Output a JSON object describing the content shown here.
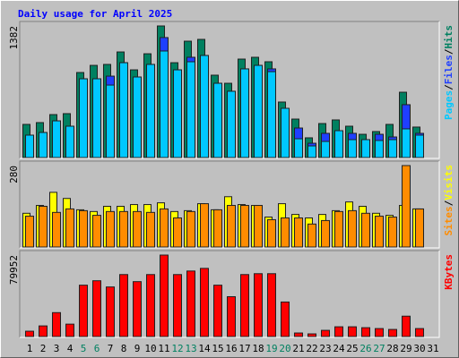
{
  "chart_data": [
    {
      "type": "bar",
      "title": "Daily usage for April 2025",
      "separator": "/",
      "ylim": [
        0,
        1382
      ],
      "yticks": [
        1382
      ],
      "series": [
        {
          "name": "Hits",
          "color": "#008060",
          "values": [
            348,
            367,
            451,
            461,
            893,
            968,
            978,
            1109,
            921,
            1090,
            1382,
            996,
            1222,
            1241,
            865,
            780,
            1034,
            1053,
            1006,
            583,
            404,
            207,
            357,
            395,
            329,
            244,
            273,
            348,
            686,
            320,
            0
          ]
        },
        {
          "name": "Files",
          "color": "#1f3fff",
          "values": [
            235,
            263,
            385,
            329,
            827,
            827,
            855,
            996,
            846,
            978,
            1260,
            921,
            1053,
            1072,
            780,
            696,
            931,
            968,
            931,
            517,
            310,
            150,
            254,
            282,
            254,
            188,
            244,
            216,
            555,
            254,
            0
          ]
        },
        {
          "name": "Pages",
          "color": "#00c8ff",
          "values": [
            235,
            263,
            385,
            329,
            827,
            827,
            761,
            996,
            846,
            978,
            1119,
            921,
            1006,
            1072,
            780,
            696,
            931,
            968,
            902,
            517,
            197,
            122,
            169,
            282,
            188,
            188,
            179,
            188,
            301,
            235,
            0
          ]
        }
      ]
    },
    {
      "type": "bar",
      "separator": "/",
      "ylim": [
        0,
        280
      ],
      "yticks": [
        280
      ],
      "series": [
        {
          "name": "Visits",
          "color": "#ffff00",
          "values": [
            116,
            143,
            188,
            167,
            128,
            122,
            140,
            140,
            146,
            146,
            152,
            122,
            125,
            149,
            128,
            173,
            146,
            143,
            103,
            149,
            112,
            100,
            112,
            125,
            155,
            140,
            116,
            109,
            143,
            131,
            0
          ]
        },
        {
          "name": "Sites",
          "color": "#ff8c00",
          "values": [
            106,
            140,
            119,
            131,
            125,
            109,
            122,
            122,
            122,
            119,
            131,
            100,
            122,
            149,
            128,
            143,
            143,
            143,
            94,
            100,
            100,
            79,
            91,
            122,
            125,
            116,
            106,
            103,
            280,
            131,
            0
          ]
        }
      ]
    },
    {
      "type": "bar",
      "ylim": [
        0,
        79952
      ],
      "yticks": [
        79952
      ],
      "categories": [
        "1",
        "2",
        "3",
        "4",
        "5",
        "6",
        "7",
        "8",
        "9",
        "10",
        "11",
        "12",
        "13",
        "14",
        "15",
        "16",
        "17",
        "18",
        "19",
        "20",
        "21",
        "22",
        "23",
        "24",
        "25",
        "26",
        "27",
        "28",
        "29",
        "30",
        "31"
      ],
      "category_colors": [
        "#000000",
        "#000000",
        "#000000",
        "#000000",
        "#008060",
        "#008060",
        "#000000",
        "#000000",
        "#000000",
        "#000000",
        "#000000",
        "#008060",
        "#008060",
        "#000000",
        "#000000",
        "#000000",
        "#000000",
        "#000000",
        "#008060",
        "#008060",
        "#000000",
        "#000000",
        "#000000",
        "#000000",
        "#000000",
        "#008060",
        "#008060",
        "#000000",
        "#000000",
        "#000000",
        "#000000"
      ],
      "series": [
        {
          "name": "KBytes",
          "color": "#ff0000",
          "values": [
            5216,
            10430,
            23470,
            12170,
            50400,
            54750,
            48660,
            60830,
            53880,
            60830,
            79952,
            60830,
            64300,
            66910,
            50400,
            39100,
            60830,
            61700,
            61700,
            33890,
            3476,
            2607,
            6083,
            9559,
            9559,
            8690,
            7821,
            6952,
            19990,
            7821,
            0
          ]
        }
      ]
    }
  ]
}
